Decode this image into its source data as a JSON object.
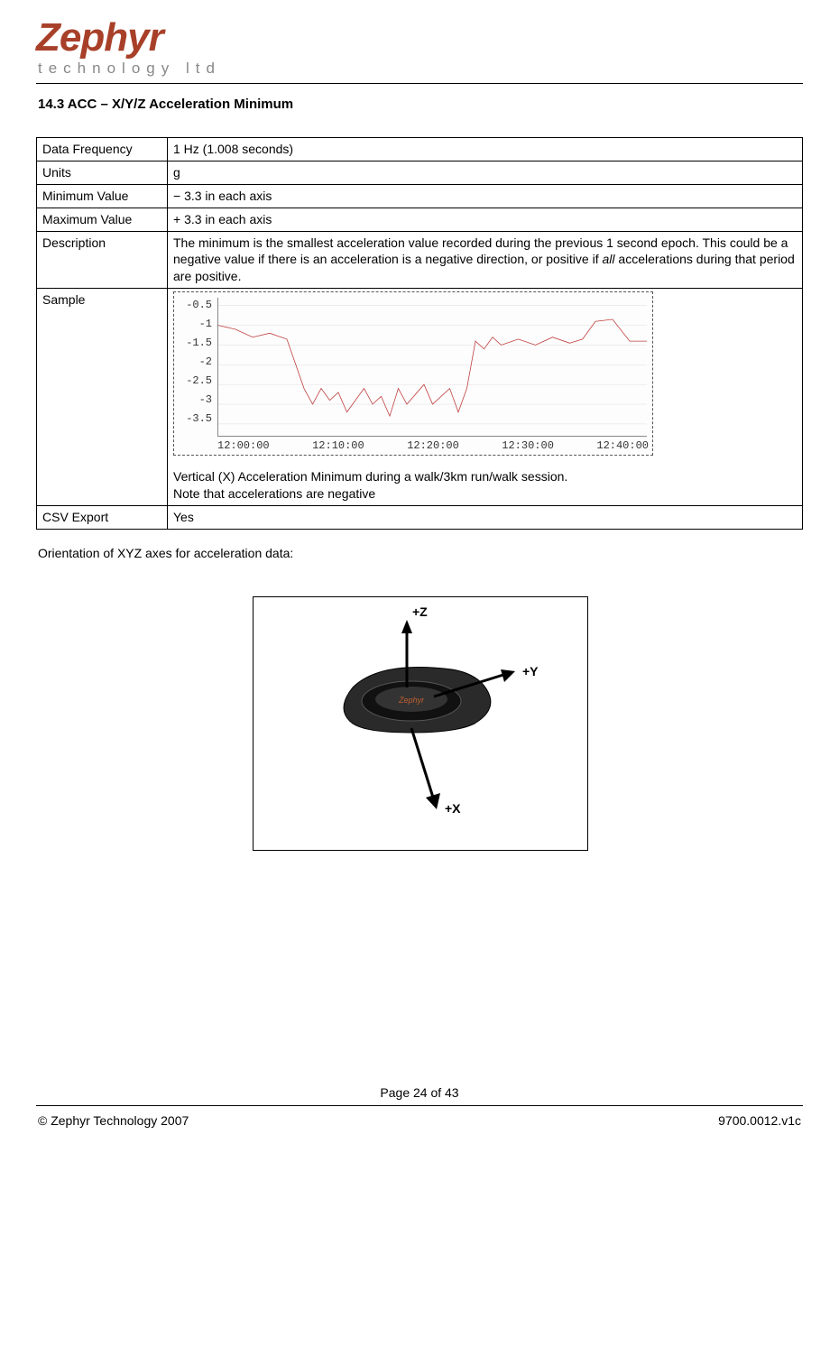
{
  "logo": {
    "brand": "Zephyr",
    "subline": "technology ltd",
    "brand_color": "#a84029",
    "sub_color": "#888888"
  },
  "heading": "14.3 ACC – X/Y/Z Acceleration Minimum",
  "table": {
    "rows": [
      {
        "key": "Data Frequency",
        "val": "1 Hz (1.008 seconds)"
      },
      {
        "key": "Units",
        "val": "g"
      },
      {
        "key": "Minimum Value",
        "val": "− 3.3 in each axis"
      },
      {
        "key": "Maximum Value",
        "val": "+ 3.3 in each axis"
      }
    ],
    "description_key": "Description",
    "description_pre": "The minimum is the smallest acceleration value recorded during the previous 1 second epoch. This could be a negative value if there is an acceleration is a negative direction, or positive if ",
    "description_italic": "all",
    "description_post": " accelerations during that period are positive.",
    "sample_key": "Sample",
    "sample_caption1": "Vertical  (X) Acceleration Minimum during a walk/3km run/walk session.",
    "sample_caption2": "Note that accelerations are negative",
    "csv_key": "CSV Export",
    "csv_val": "Yes"
  },
  "chart": {
    "type": "line",
    "y_ticks": [
      "-0.5",
      "-1",
      "-1.5",
      "-2",
      "-2.5",
      "-3",
      "-3.5"
    ],
    "x_ticks": [
      "12:00:00",
      "12:10:00",
      "12:20:00",
      "12:30:00",
      "12:40:00"
    ],
    "line_color": "#c04040",
    "background_color": "#fdfdfd",
    "grid_color": "#dddddd",
    "ylim": [
      -3.8,
      -0.3
    ],
    "series": [
      [
        0,
        -1.0
      ],
      [
        4,
        -1.1
      ],
      [
        8,
        -1.3
      ],
      [
        12,
        -1.2
      ],
      [
        16,
        -1.35
      ],
      [
        20,
        -2.6
      ],
      [
        22,
        -3.0
      ],
      [
        24,
        -2.6
      ],
      [
        26,
        -2.9
      ],
      [
        28,
        -2.7
      ],
      [
        30,
        -3.2
      ],
      [
        34,
        -2.6
      ],
      [
        36,
        -3.0
      ],
      [
        38,
        -2.8
      ],
      [
        40,
        -3.3
      ],
      [
        42,
        -2.6
      ],
      [
        44,
        -3.0
      ],
      [
        48,
        -2.5
      ],
      [
        50,
        -3.0
      ],
      [
        54,
        -2.6
      ],
      [
        56,
        -3.2
      ],
      [
        58,
        -2.6
      ],
      [
        60,
        -1.4
      ],
      [
        62,
        -1.6
      ],
      [
        64,
        -1.3
      ],
      [
        66,
        -1.5
      ],
      [
        70,
        -1.35
      ],
      [
        74,
        -1.5
      ],
      [
        78,
        -1.3
      ],
      [
        82,
        -1.45
      ],
      [
        85,
        -1.35
      ],
      [
        88,
        -0.9
      ],
      [
        92,
        -0.85
      ],
      [
        96,
        -1.4
      ],
      [
        100,
        -1.4
      ]
    ]
  },
  "orientation_text": "Orientation of XYZ axes for acceleration data:",
  "axes_diagram": {
    "z_label": "+Z",
    "y_label": "+Y",
    "x_label": "+X"
  },
  "footer": {
    "page": "Page 24 of 43",
    "copyright": "© Zephyr Technology 2007",
    "docnum": "9700.0012.v1c"
  }
}
